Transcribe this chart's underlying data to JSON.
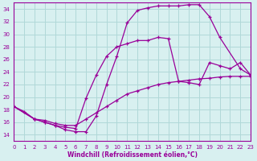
{
  "xlabel": "Windchill (Refroidissement éolien,°C)",
  "bg_color": "#d8f0f0",
  "grid_color": "#b0d8d8",
  "line_color": "#990099",
  "xlim": [
    0,
    23
  ],
  "ylim": [
    13,
    35
  ],
  "yticks": [
    14,
    16,
    18,
    20,
    22,
    24,
    26,
    28,
    30,
    32,
    34
  ],
  "xticks": [
    0,
    1,
    2,
    3,
    4,
    5,
    6,
    7,
    8,
    9,
    10,
    11,
    12,
    13,
    14,
    15,
    16,
    17,
    18,
    19,
    20,
    21,
    22,
    23
  ],
  "line1_x": [
    0,
    1,
    2,
    3,
    4,
    5,
    6,
    7,
    8,
    9,
    10,
    11,
    12,
    13,
    14,
    15,
    16,
    17,
    18,
    19,
    20,
    21,
    22,
    23
  ],
  "line1_y": [
    18.5,
    17.7,
    16.5,
    16.3,
    15.8,
    15.5,
    15.5,
    16.5,
    17.5,
    18.5,
    19.5,
    20.5,
    21.0,
    21.5,
    22.0,
    22.3,
    22.5,
    22.7,
    22.9,
    23.0,
    23.2,
    23.3,
    23.3,
    23.3
  ],
  "line2_x": [
    0,
    2,
    3,
    4,
    5,
    6,
    7,
    8,
    9,
    10,
    11,
    12,
    13,
    14,
    15,
    16,
    17,
    18,
    19,
    20,
    21,
    22,
    23
  ],
  "line2_y": [
    18.5,
    16.5,
    16.0,
    15.5,
    15.2,
    15.0,
    19.8,
    23.5,
    26.5,
    28.0,
    28.5,
    29.0,
    29.0,
    29.5,
    29.3,
    22.5,
    22.3,
    22.0,
    25.5,
    25.0,
    24.5,
    25.5,
    23.5
  ],
  "line3_x": [
    0,
    2,
    3,
    4,
    5,
    6,
    7,
    8,
    9,
    10,
    11,
    12,
    13,
    14,
    15,
    16,
    17,
    18,
    19,
    20,
    22,
    23
  ],
  "line3_y": [
    18.5,
    16.5,
    16.0,
    15.5,
    14.8,
    14.5,
    14.5,
    17.0,
    22.0,
    26.5,
    31.8,
    33.8,
    34.2,
    34.5,
    34.5,
    34.5,
    34.7,
    34.7,
    32.8,
    29.5,
    24.5,
    23.5
  ]
}
